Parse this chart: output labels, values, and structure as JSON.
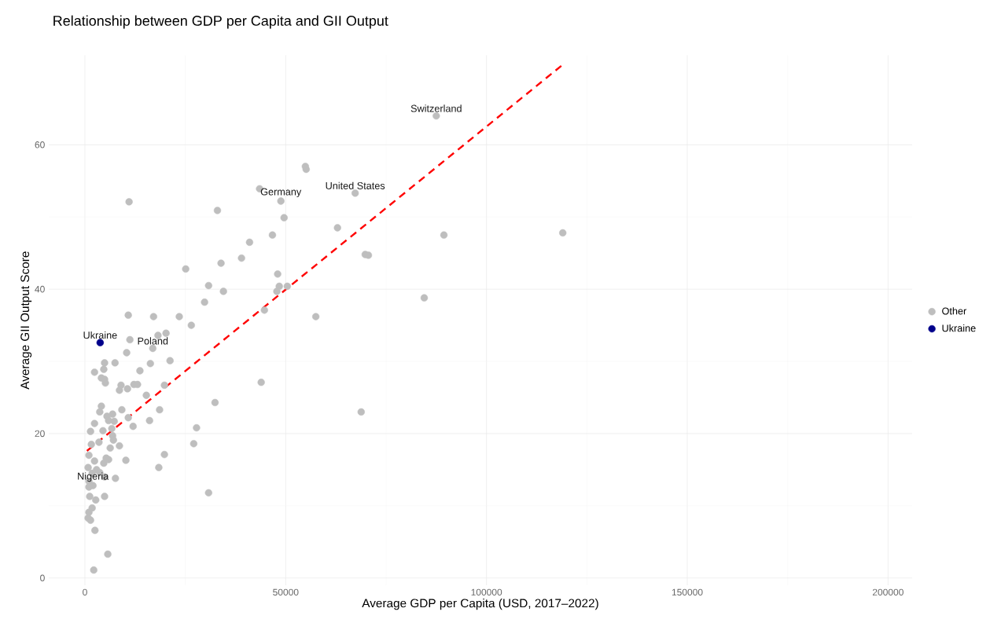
{
  "chart_data": {
    "type": "scatter",
    "title": "Relationship between GDP per Capita and GII Output",
    "xlabel": "Average GDP per Capita (USD, 2017–2022)",
    "ylabel": "Average GII Output Score",
    "xlim": [
      -9000,
      206000
    ],
    "ylim": [
      -1,
      72.4
    ],
    "xticks": [
      0,
      50000,
      100000,
      150000,
      200000
    ],
    "yticks": [
      0,
      20,
      40,
      60
    ],
    "grid": true,
    "legend": "right",
    "series": [
      {
        "name": "Other",
        "color": "#bebebe",
        "marker": "circle",
        "x": [
          87500,
          54900,
          55100,
          43500,
          48800,
          67300,
          11000,
          33000,
          49600,
          62900,
          41000,
          46700,
          89400,
          119000,
          39000,
          33900,
          25100,
          48000,
          69800,
          70600,
          48400,
          50400,
          47800,
          30800,
          34500,
          29800,
          84500,
          57500,
          10800,
          17100,
          23500,
          44700,
          26500,
          11200,
          20200,
          18200,
          16900,
          10400,
          21200,
          16300,
          13700,
          10600,
          12200,
          13100,
          19800,
          15300,
          18600,
          16100,
          12000,
          10800,
          27800,
          27100,
          32400,
          43900,
          10200,
          19800,
          18400,
          30800,
          68800,
          4900,
          7500,
          4700,
          2400,
          4100,
          4900,
          5100,
          9000,
          8600,
          4100,
          3700,
          5500,
          6900,
          5900,
          7300,
          9200,
          2400,
          1400,
          4500,
          6700,
          3500,
          6900,
          7100,
          8600,
          6300,
          1600,
          1000,
          2400,
          800,
          4700,
          5900,
          5300,
          7600,
          2900,
          1800,
          3700,
          4900,
          1000,
          2000,
          1000,
          4900,
          1200,
          2700,
          1800,
          1000,
          800,
          1400,
          2500,
          5700,
          2200
        ],
        "values": [
          64.0,
          57.0,
          56.6,
          53.9,
          52.2,
          53.3,
          52.1,
          50.9,
          49.9,
          48.5,
          46.5,
          47.5,
          47.5,
          47.8,
          44.3,
          43.6,
          42.8,
          42.1,
          44.8,
          44.7,
          40.4,
          40.4,
          39.7,
          40.5,
          39.7,
          38.2,
          38.8,
          36.2,
          36.4,
          36.2,
          36.2,
          37.1,
          35.0,
          33.0,
          33.9,
          33.6,
          31.8,
          31.2,
          30.1,
          29.7,
          28.7,
          26.2,
          26.8,
          26.8,
          26.7,
          25.3,
          23.3,
          21.8,
          21.0,
          22.2,
          20.8,
          18.6,
          24.3,
          27.1,
          16.3,
          17.1,
          15.3,
          11.8,
          23.0,
          29.8,
          29.8,
          28.9,
          28.5,
          27.7,
          27.5,
          27.0,
          26.7,
          26.0,
          23.8,
          23.0,
          22.4,
          22.7,
          21.8,
          21.7,
          23.3,
          21.4,
          20.3,
          20.4,
          20.7,
          18.8,
          19.7,
          19.1,
          18.3,
          18.0,
          18.5,
          17.0,
          16.2,
          15.3,
          15.9,
          16.4,
          16.6,
          13.8,
          15.0,
          14.5,
          14.6,
          14.0,
          13.4,
          12.8,
          12.6,
          11.3,
          11.3,
          10.8,
          9.7,
          9.1,
          8.3,
          8.0,
          6.6,
          3.3,
          1.1
        ]
      },
      {
        "name": "Ukraine",
        "color": "#00008b",
        "marker": "circle",
        "x": [
          3800
        ],
        "values": [
          32.6
        ]
      },
      {
        "color": "#ff0000",
        "type": "line",
        "line_style": "dashed",
        "x": [
          500,
          119000
        ],
        "values": [
          17.6,
          71.1
        ]
      }
    ],
    "annotations": [
      {
        "text": "Switzerland",
        "x": 87500,
        "y": 64.0
      },
      {
        "text": "Germany",
        "x": 48800,
        "y": 52.2
      },
      {
        "text": "United States",
        "x": 67300,
        "y": 53.3
      },
      {
        "text": "Ukraine",
        "x": 3800,
        "y": 32.6
      },
      {
        "text": "Poland",
        "x": 16900,
        "y": 31.8
      },
      {
        "text": "Nigeria",
        "x": 2000,
        "y": 12.8
      }
    ]
  }
}
